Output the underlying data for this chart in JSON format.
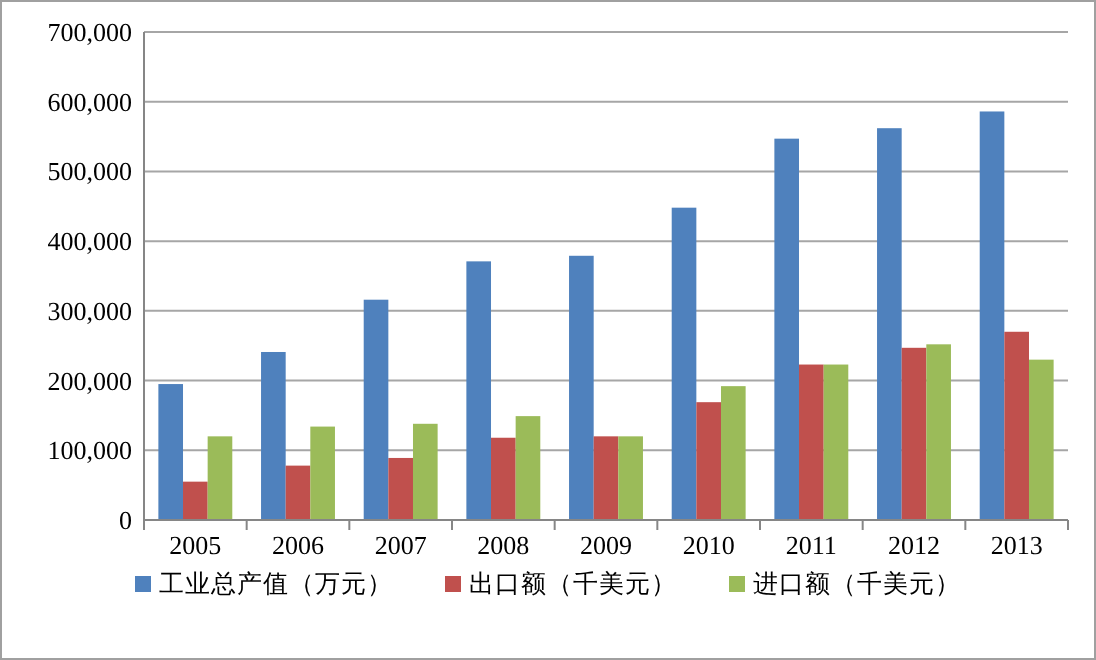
{
  "chart_data": {
    "type": "bar",
    "categories": [
      "2005",
      "2006",
      "2007",
      "2008",
      "2009",
      "2010",
      "2011",
      "2012",
      "2013"
    ],
    "series": [
      {
        "name": "工业总产值（万元）",
        "color": "#4f81bd",
        "values": [
          195000,
          241000,
          316000,
          371000,
          379000,
          448000,
          547000,
          562000,
          586000
        ]
      },
      {
        "name": "出口额（千美元）",
        "color": "#c0504d",
        "values": [
          55000,
          78000,
          89000,
          118000,
          120000,
          169000,
          223000,
          247000,
          270000
        ]
      },
      {
        "name": "进口额（千美元）",
        "color": "#9bbb59",
        "values": [
          120000,
          134000,
          138000,
          149000,
          120000,
          192000,
          223000,
          252000,
          230000
        ]
      }
    ],
    "ylim": [
      0,
      700000
    ],
    "yticks": [
      {
        "value": 0,
        "label": "0"
      },
      {
        "value": 100000,
        "label": "100,000"
      },
      {
        "value": 200000,
        "label": "200,000"
      },
      {
        "value": 300000,
        "label": "300,000"
      },
      {
        "value": 400000,
        "label": "400,000"
      },
      {
        "value": 500000,
        "label": "500,000"
      },
      {
        "value": 600000,
        "label": "600,000"
      },
      {
        "value": 700000,
        "label": "700,000"
      }
    ],
    "grid": "y",
    "legend": "bottom"
  }
}
